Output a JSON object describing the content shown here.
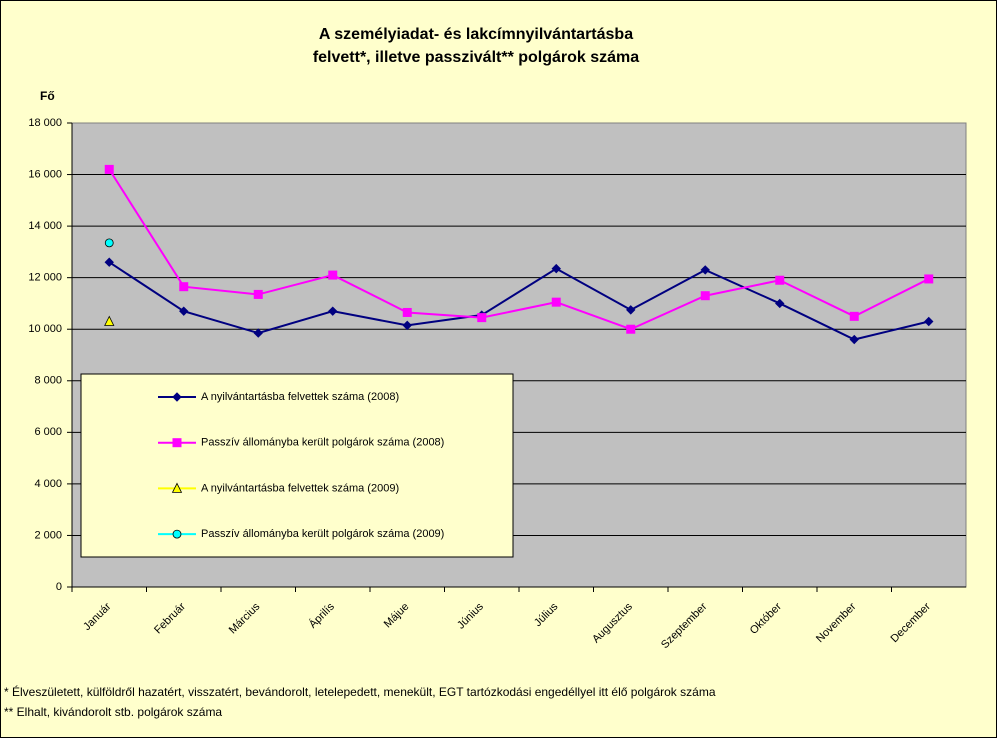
{
  "chart_data": {
    "type": "line",
    "title": [
      "A személyiadat- és lakcímnyilvántartásba",
      "felvett*, illetve passzivált** polgárok száma"
    ],
    "y_label": "Fő",
    "categories": [
      "Január",
      "Február",
      "Március",
      "Áprilís",
      "Májue",
      "Június",
      "Július",
      "Augusztus",
      "Szeptember",
      "Október",
      "November",
      "December"
    ],
    "series": [
      {
        "name": "A nyilvántartásba felvettek száma (2008)",
        "color": "#000080",
        "marker": "diamond",
        "values": [
          12600,
          10700,
          9850,
          10700,
          10150,
          10550,
          12350,
          10750,
          12300,
          11000,
          9600,
          10300
        ]
      },
      {
        "name": "Passzív állományba került polgárok száma (2008)",
        "color": "#ff00ff",
        "marker": "square",
        "values": [
          16200,
          11650,
          11350,
          12100,
          10650,
          10450,
          11050,
          10000,
          11300,
          11900,
          10500,
          11950
        ]
      },
      {
        "name": "A nyilvántartásba felvettek száma (2009)",
        "color": "#ffff00",
        "marker": "triangle",
        "values": [
          10300,
          null,
          null,
          null,
          null,
          null,
          null,
          null,
          null,
          null,
          null,
          null
        ]
      },
      {
        "name": "Passzív állományba került polgárok száma (2009)",
        "color": "#00ffff",
        "marker": "circle",
        "values": [
          13350,
          null,
          null,
          null,
          null,
          null,
          null,
          null,
          null,
          null,
          null,
          null
        ]
      }
    ],
    "ylim": [
      0,
      18000
    ],
    "yticks": [
      0,
      {
        "value": 2000,
        "label": "2 000"
      },
      {
        "value": 4000,
        "label": "4 000"
      },
      {
        "value": 6000,
        "label": "6 000"
      },
      {
        "value": 8000,
        "label": "8 000"
      },
      {
        "value": 10000,
        "label": "10 000"
      },
      {
        "value": 12000,
        "label": "12 000"
      },
      {
        "value": 14000,
        "label": "14 000"
      },
      {
        "value": 16000,
        "label": "16 000"
      },
      {
        "value": 18000,
        "label": "18 000"
      }
    ],
    "grid": true,
    "legend": "inside-bottom-left",
    "footnotes": [
      "* Élveszületett, külföldről hazatért, visszatért, bevándorolt, letelepedett, menekült, EGT tartózkodási engedéllyel itt élő  polgárok száma",
      "** Elhalt, kivándorolt stb. polgárok száma"
    ]
  }
}
